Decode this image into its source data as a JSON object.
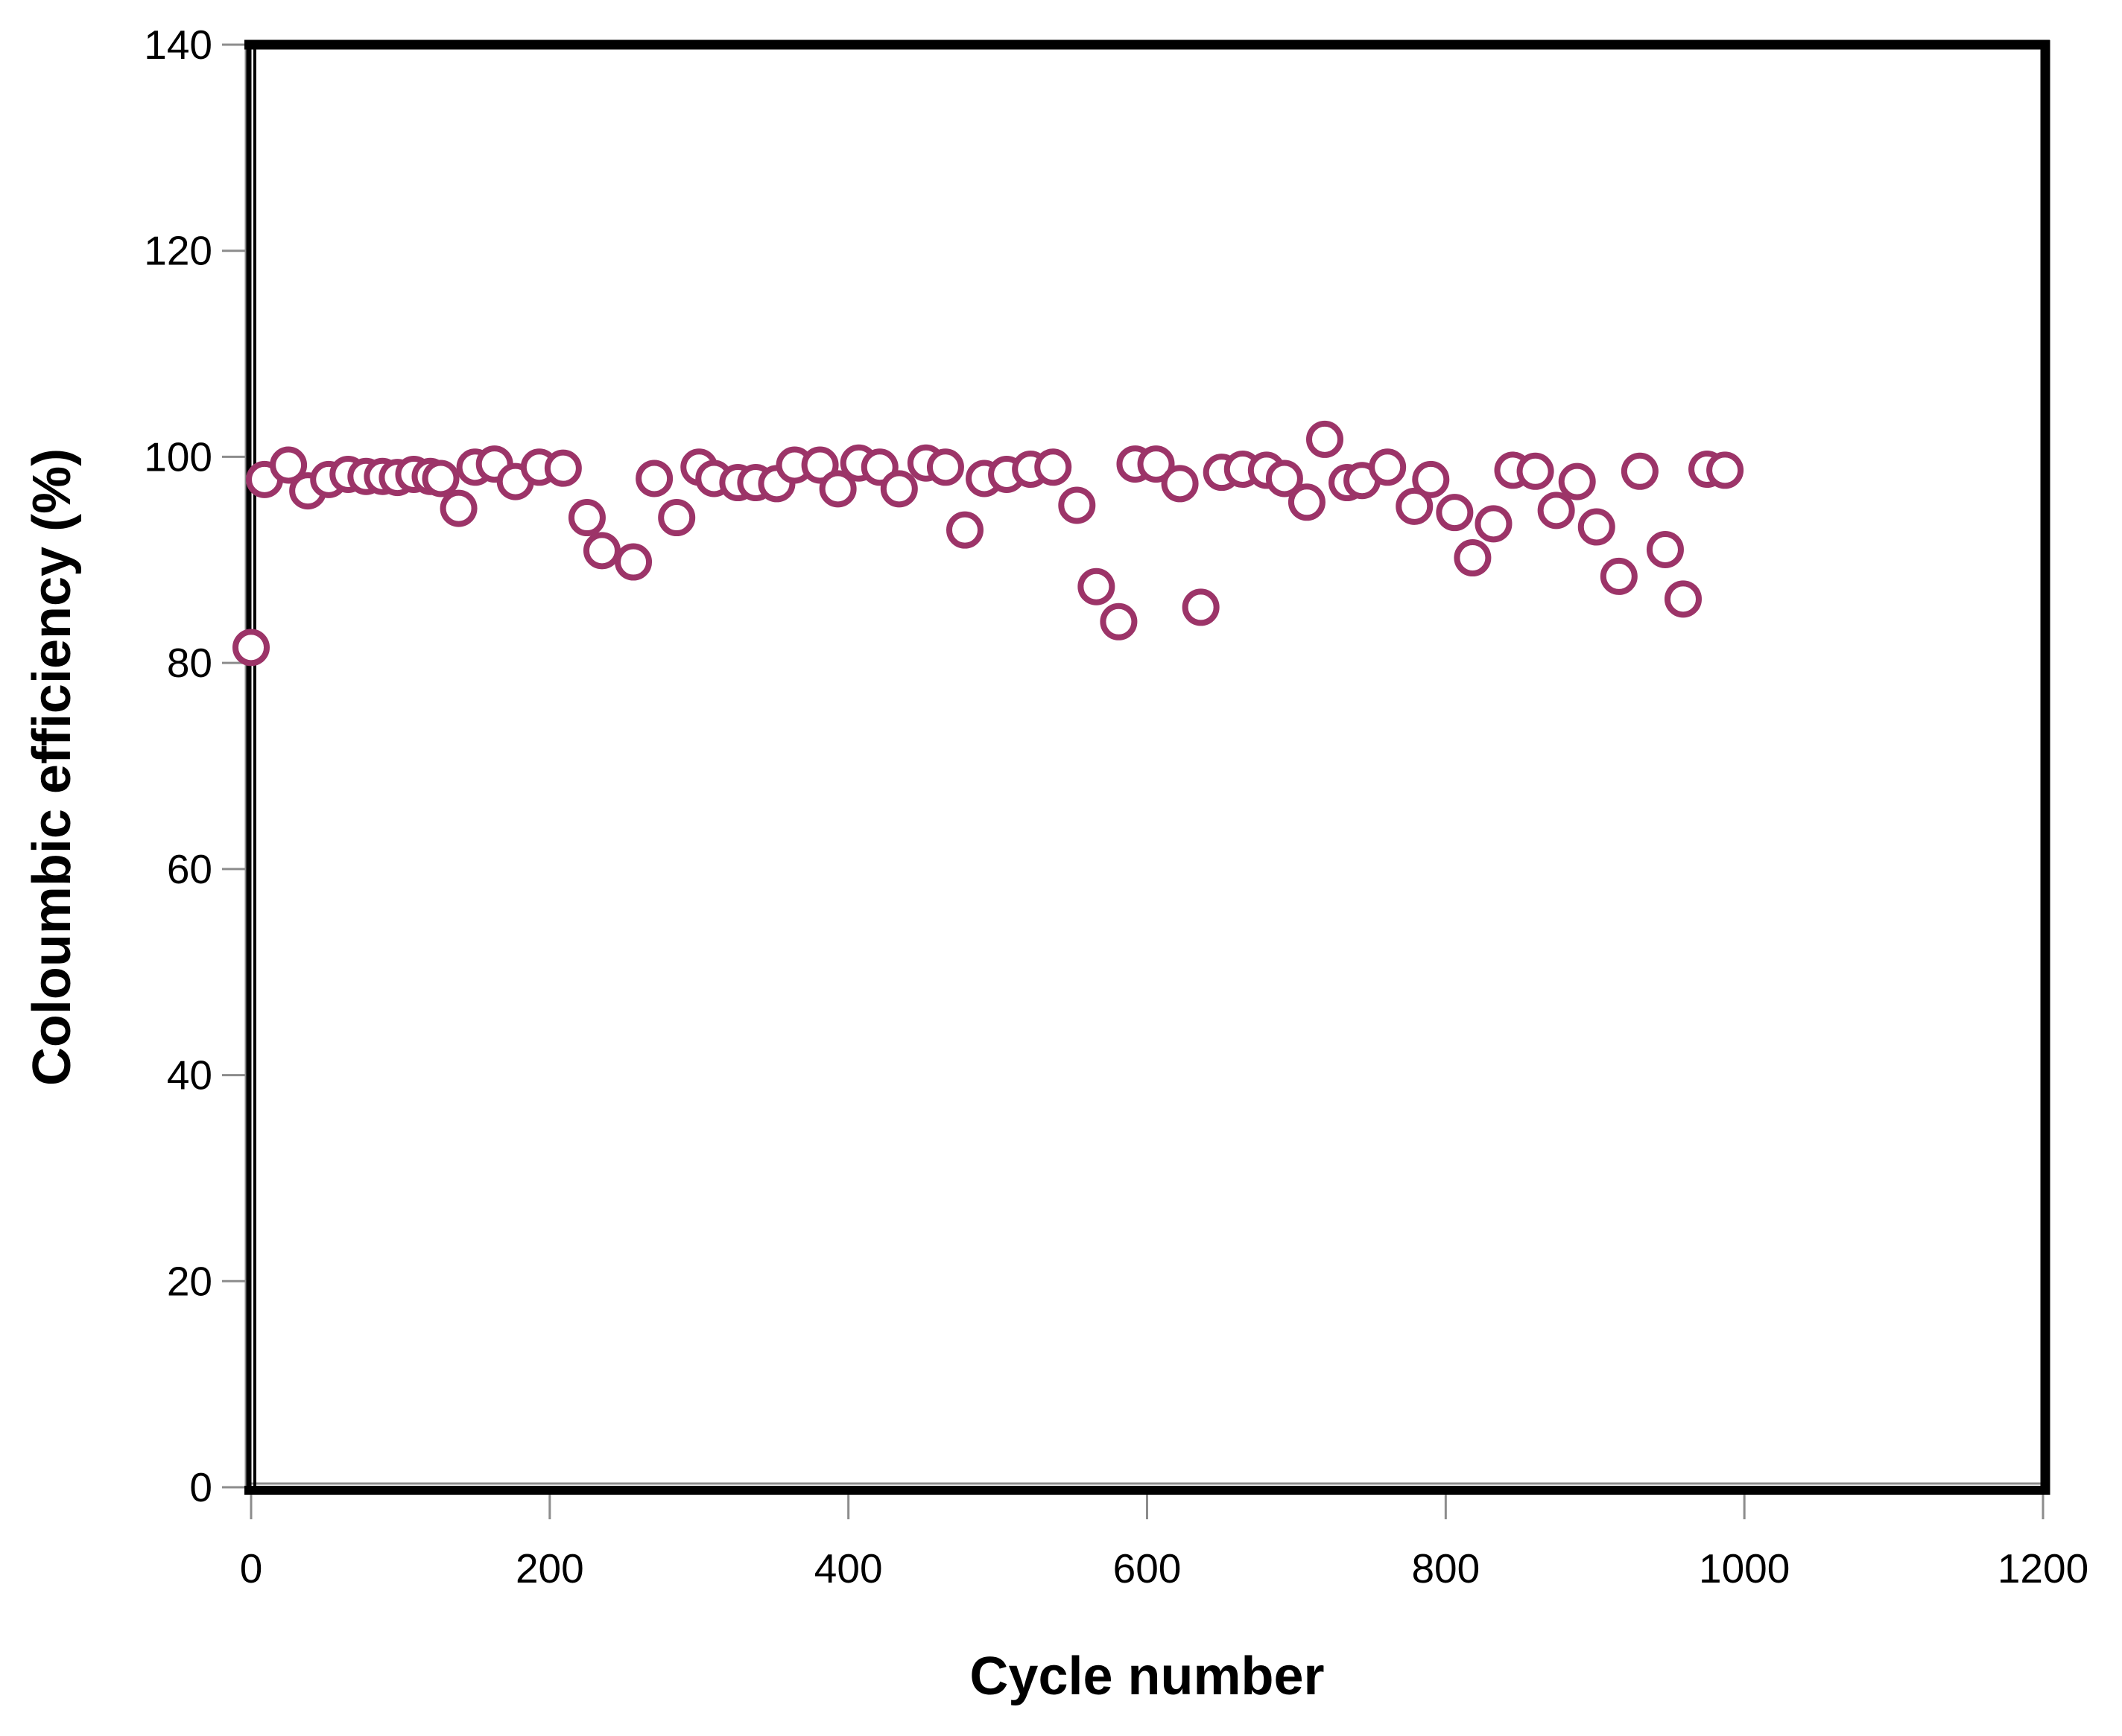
{
  "figure": {
    "background": "#ffffff",
    "border_color": "#000000",
    "tick_mark_color": "#8c8c8c"
  },
  "chart_data": {
    "type": "scatter",
    "title": "",
    "xlabel": "Cycle number",
    "ylabel": "Coloumbic efficiency (%)",
    "xlim": [
      0,
      1200
    ],
    "ylim": [
      0,
      140
    ],
    "x_ticks": [
      0,
      200,
      400,
      600,
      800,
      1000,
      1200
    ],
    "y_ticks": [
      0,
      20,
      40,
      60,
      80,
      100,
      120,
      140
    ],
    "grid": false,
    "legend_position": "none",
    "series": [
      {
        "name": "Coloumbic efficiency",
        "marker": "open-circle",
        "marker_color": "#9C3468",
        "marker_fill": "#ffffff",
        "points": [
          [
            0,
            81.5
          ],
          [
            9,
            97.8
          ],
          [
            25,
            99.2
          ],
          [
            38,
            96.7
          ],
          [
            52,
            97.8
          ],
          [
            65,
            98.3
          ],
          [
            77,
            98.1
          ],
          [
            88,
            98.1
          ],
          [
            98,
            98.0
          ],
          [
            109,
            98.3
          ],
          [
            120,
            98.1
          ],
          [
            127,
            97.9
          ],
          [
            139,
            95.0
          ],
          [
            150,
            99.0
          ],
          [
            163,
            99.3
          ],
          [
            177,
            97.6
          ],
          [
            193,
            99.0
          ],
          [
            209,
            98.9
          ],
          [
            225,
            94.1
          ],
          [
            235,
            90.9
          ],
          [
            256,
            89.8
          ],
          [
            270,
            97.9
          ],
          [
            285,
            94.1
          ],
          [
            300,
            99.0
          ],
          [
            310,
            97.9
          ],
          [
            326,
            97.5
          ],
          [
            338,
            97.5
          ],
          [
            352,
            97.4
          ],
          [
            364,
            99.2
          ],
          [
            381,
            99.2
          ],
          [
            393,
            96.9
          ],
          [
            407,
            99.4
          ],
          [
            421,
            99.0
          ],
          [
            434,
            96.9
          ],
          [
            452,
            99.4
          ],
          [
            465,
            99.0
          ],
          [
            478,
            92.9
          ],
          [
            491,
            97.9
          ],
          [
            506,
            98.3
          ],
          [
            522,
            98.8
          ],
          [
            537,
            99.0
          ],
          [
            553,
            95.3
          ],
          [
            566,
            87.4
          ],
          [
            581,
            84.0
          ],
          [
            592,
            99.3
          ],
          [
            606,
            99.3
          ],
          [
            622,
            97.4
          ],
          [
            636,
            85.4
          ],
          [
            650,
            98.5
          ],
          [
            664,
            98.8
          ],
          [
            680,
            98.7
          ],
          [
            692,
            97.9
          ],
          [
            707,
            95.6
          ],
          [
            719,
            101.7
          ],
          [
            734,
            97.5
          ],
          [
            744,
            97.7
          ],
          [
            761,
            99.0
          ],
          [
            779,
            95.2
          ],
          [
            790,
            97.8
          ],
          [
            806,
            94.6
          ],
          [
            818,
            90.2
          ],
          [
            832,
            93.5
          ],
          [
            845,
            98.7
          ],
          [
            860,
            98.6
          ],
          [
            874,
            94.8
          ],
          [
            888,
            97.6
          ],
          [
            901,
            93.2
          ],
          [
            916,
            88.4
          ],
          [
            930,
            98.6
          ],
          [
            947,
            91.0
          ],
          [
            959,
            86.2
          ],
          [
            975,
            98.8
          ],
          [
            987,
            98.7
          ]
        ]
      }
    ]
  }
}
